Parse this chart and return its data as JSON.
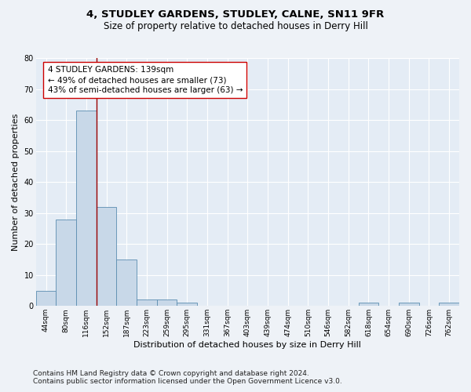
{
  "title": "4, STUDLEY GARDENS, STUDLEY, CALNE, SN11 9FR",
  "subtitle": "Size of property relative to detached houses in Derry Hill",
  "xlabel": "Distribution of detached houses by size in Derry Hill",
  "ylabel": "Number of detached properties",
  "footnote1": "Contains HM Land Registry data © Crown copyright and database right 2024.",
  "footnote2": "Contains public sector information licensed under the Open Government Licence v3.0.",
  "categories": [
    "44sqm",
    "80sqm",
    "116sqm",
    "152sqm",
    "187sqm",
    "223sqm",
    "259sqm",
    "295sqm",
    "331sqm",
    "367sqm",
    "403sqm",
    "439sqm",
    "474sqm",
    "510sqm",
    "546sqm",
    "582sqm",
    "618sqm",
    "654sqm",
    "690sqm",
    "726sqm",
    "762sqm"
  ],
  "values": [
    5,
    28,
    63,
    32,
    15,
    2,
    2,
    1,
    0,
    0,
    0,
    0,
    0,
    0,
    0,
    0,
    1,
    0,
    1,
    0,
    1
  ],
  "bar_color": "#c8d8e8",
  "bar_edge_color": "#5b8db0",
  "ylim": [
    0,
    80
  ],
  "yticks": [
    0,
    10,
    20,
    30,
    40,
    50,
    60,
    70,
    80
  ],
  "property_line_x": 2.5,
  "property_line_color": "#990000",
  "annotation_box_text": "4 STUDLEY GARDENS: 139sqm\n← 49% of detached houses are smaller (73)\n43% of semi-detached houses are larger (63) →",
  "title_fontsize": 9.5,
  "subtitle_fontsize": 8.5,
  "xlabel_fontsize": 8,
  "ylabel_fontsize": 8,
  "tick_fontsize": 6.5,
  "annotation_fontsize": 7.5,
  "footnote_fontsize": 6.5,
  "background_color": "#eef2f7",
  "plot_bg_color": "#e4ecf5",
  "grid_color": "#ffffff"
}
